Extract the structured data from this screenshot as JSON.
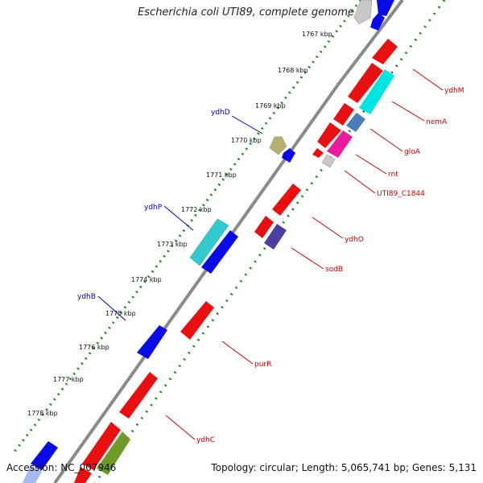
{
  "title": "Escherichia coli UTI89, complete genome",
  "footer": {
    "accession": "Accession: NC_007946",
    "summary": "Topology: circular; Length: 5,065,741 bp; Genes: 5,131"
  },
  "colors": {
    "backbone": "#8a8a8a",
    "tick_dots": "#1d8a1d",
    "red_gene": "#e81010",
    "blue_gene": "#0a0ae6",
    "cyan_gene": "#00e4e4",
    "teal_gene": "#33c9cf",
    "steel_gene": "#4a7db5",
    "magenta_gene": "#e61c9c",
    "gray_gene": "#c8c8c8",
    "olive_gene": "#6e9a2a",
    "tan_gene": "#b8b070",
    "indigo_gene": "#4a3fa0",
    "label_red": "#cc0000",
    "label_blue": "#0000cc"
  },
  "ruler_labels": [
    "1767 kbp",
    "1768 kbp",
    "1769 kbp",
    "1770 kbp",
    "1771 kbp",
    "1772 kbp",
    "1773 kbp",
    "1774 kbp",
    "1775 kbp",
    "1776 kbp",
    "1777 kbp",
    "1778 kbp"
  ],
  "gene_labels_right": [
    "ydhM",
    "nemA",
    "gloA",
    "rnt",
    "UTI89_C1844",
    "ydhO",
    "sodB",
    "purR",
    "ydhC"
  ],
  "gene_labels_left": [
    "ydhD",
    "ydhP",
    "ydhB"
  ]
}
